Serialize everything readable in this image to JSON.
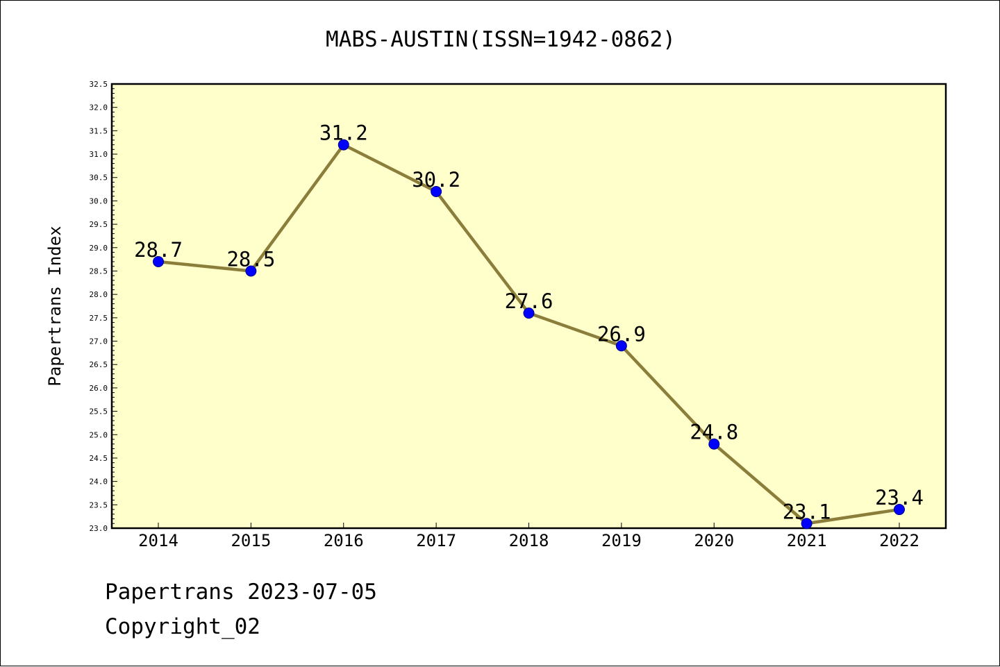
{
  "chart_data": {
    "type": "line",
    "title": "MABS-AUSTIN(ISSN=1942-0862)",
    "xlabel": "",
    "ylabel": "Papertrans Index",
    "categories": [
      "2014",
      "2015",
      "2016",
      "2017",
      "2018",
      "2019",
      "2020",
      "2021",
      "2022"
    ],
    "series": [
      {
        "values": [
          28.7,
          28.5,
          31.2,
          30.2,
          27.6,
          26.9,
          24.8,
          23.1,
          23.4
        ]
      }
    ],
    "ylim": [
      23.0,
      32.5
    ],
    "ytick_step": 0.5,
    "y_tick_labels": [
      "23.0",
      "23.5",
      "24.0",
      "24.5",
      "25.0",
      "25.5",
      "26.0",
      "26.5",
      "27.0",
      "27.5",
      "28.0",
      "28.5",
      "29.0",
      "29.5",
      "30.0",
      "30.5",
      "31.0",
      "31.5",
      "32.0",
      "32.5"
    ],
    "data_labels": [
      "28.7",
      "28.5",
      "31.2",
      "30.2",
      "27.6",
      "26.9",
      "24.8",
      "23.1",
      "23.4"
    ],
    "grid": false,
    "legend": "none",
    "colors": {
      "plot_background": "#ffffcc",
      "line": "#8b7d3a",
      "marker": "#0000ff",
      "marker_edge": "#00008b"
    }
  },
  "footer": {
    "date_text": "Papertrans 2023-07-05",
    "copyright_text": "Copyright_02"
  }
}
